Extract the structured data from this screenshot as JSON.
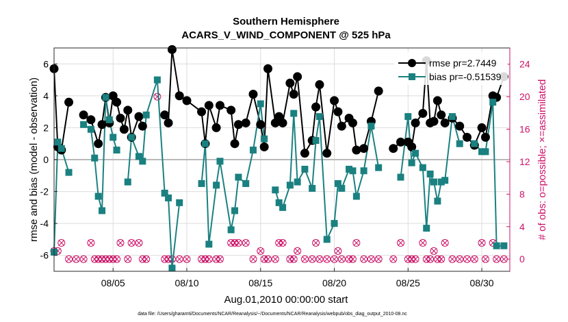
{
  "chart_data": {
    "type": "line",
    "title": "Southern Hemisphere",
    "subtitle": "ACARS_V_WIND_COMPONENT @ 525 hPa",
    "xlabel": "Aug.01,2010 00:00:00 start",
    "ylabel": "rmse and bias (model - observation)",
    "y2label": "# of obs: o=possible; ×=assimilated",
    "footnote": "data file: /Users/gharamti/Documents/NCAR/Reanalysis/~/Documents/NCAR/Reanalysis/webpub/obs_diag_output_2010-08.nc",
    "xlim": [
      1.0,
      31.9
    ],
    "ylim": [
      -7,
      7
    ],
    "y2lim": [
      -1.5,
      26
    ],
    "grid": true,
    "legend_position": "top-right",
    "x_ticks": [
      5,
      10,
      15,
      20,
      25,
      30
    ],
    "x_tick_labels": [
      "08/05",
      "08/10",
      "08/15",
      "08/20",
      "08/25",
      "08/30"
    ],
    "y_ticks": [
      -6,
      -4,
      -2,
      0,
      2,
      4,
      6
    ],
    "y_tick_labels": [
      "-6",
      "-4",
      "-2",
      "0",
      "2",
      "4",
      "6"
    ],
    "y2_ticks": [
      0,
      4,
      8,
      12,
      16,
      20,
      24
    ],
    "y2_tick_labels": [
      "0",
      "4",
      "8",
      "12",
      "16",
      "20",
      "24"
    ],
    "colors": {
      "rmse": "#000000",
      "bias": "#1a8080",
      "obs": "#cc1166",
      "zero_line": "#b8b8b8"
    },
    "series": [
      {
        "name": "rmse pr=2.7449",
        "marker": "circle",
        "x": [
          1.0,
          1.25,
          1.5,
          2.0,
          2.5,
          3.0,
          3.5,
          4.0,
          4.25,
          4.5,
          4.75,
          5.0,
          5.25,
          5.5,
          5.75,
          6.0,
          6.25,
          6.75,
          7.0,
          8.0,
          8.5,
          8.75,
          9.0,
          9.5,
          10.0,
          11.0,
          11.25,
          11.5,
          12.0,
          12.25,
          13.0,
          13.25,
          13.5,
          14.0,
          14.5,
          15.0,
          15.25,
          15.5,
          16.0,
          16.25,
          16.5,
          17.0,
          17.25,
          17.5,
          18.0,
          18.5,
          18.75,
          19.0,
          19.5,
          20.0,
          20.25,
          20.5,
          21.0,
          21.25,
          21.5,
          22.0,
          22.5,
          23.0,
          23.5,
          24.0,
          24.5,
          25.0,
          25.25,
          25.5,
          26.0,
          26.25,
          26.5,
          26.75,
          27.0,
          27.25,
          27.5,
          28.0,
          28.5,
          29.0,
          29.5,
          30.0,
          30.25,
          30.75,
          31.0,
          31.5
        ],
        "values": [
          5.7,
          0.8,
          0.6,
          3.6,
          null,
          2.8,
          2.5,
          1.0,
          2.2,
          3.9,
          2.3,
          4.0,
          3.6,
          2.6,
          1.9,
          3.1,
          1.4,
          2.7,
          2.1,
          null,
          2.8,
          2.3,
          6.9,
          4.0,
          3.7,
          3.0,
          1.0,
          3.4,
          2.0,
          3.4,
          3.1,
          1.0,
          2.2,
          2.3,
          4.1,
          2.2,
          0.8,
          5.7,
          2.3,
          2.7,
          2.3,
          4.8,
          4.1,
          5.2,
          0.4,
          1.2,
          3.3,
          4.7,
          0.4,
          3.7,
          3.0,
          2.1,
          2.6,
          2.3,
          0.6,
          0.7,
          2.4,
          4.3,
          null,
          0.7,
          1.1,
          1.1,
          0.8,
          2.3,
          2.9,
          6.2,
          2.3,
          2.4,
          3.7,
          2.8,
          2.3,
          2.6,
          2.1,
          1.4,
          0.9,
          2.0,
          1.4,
          4.0,
          3.9,
          5.2
        ]
      },
      {
        "name": "bias pr=-0.51539",
        "marker": "square",
        "x": [
          1.0,
          1.25,
          1.5,
          2.0,
          2.5,
          3.0,
          3.5,
          3.75,
          4.0,
          4.25,
          4.5,
          4.75,
          5.0,
          5.25,
          5.5,
          6.0,
          6.25,
          6.75,
          7.0,
          7.25,
          8.0,
          8.5,
          8.75,
          9.0,
          9.5,
          10.0,
          11.0,
          11.25,
          11.5,
          12.0,
          12.25,
          13.0,
          13.25,
          13.5,
          14.0,
          14.5,
          15.0,
          15.25,
          15.5,
          16.0,
          16.25,
          16.5,
          17.0,
          17.25,
          17.5,
          18.0,
          18.5,
          18.75,
          19.0,
          19.5,
          20.0,
          20.25,
          20.5,
          21.0,
          21.25,
          21.5,
          22.0,
          22.5,
          23.0,
          24.0,
          24.5,
          25.0,
          25.25,
          25.5,
          26.0,
          26.25,
          26.5,
          26.75,
          27.0,
          27.25,
          27.5,
          28.0,
          28.5,
          29.0,
          29.5,
          30.0,
          30.25,
          30.75,
          31.0,
          31.5
        ],
        "values": [
          -5.8,
          1.1,
          0.7,
          -0.8,
          null,
          2.2,
          1.9,
          0.1,
          -2.3,
          -3.2,
          3.9,
          2.5,
          1.4,
          0.6,
          null,
          -1.4,
          1.4,
          0.2,
          -0.1,
          2.8,
          5.0,
          -2.1,
          -2.4,
          -6.8,
          -2.7,
          null,
          -1.5,
          1.0,
          -5.3,
          -1.6,
          -0.1,
          -4.4,
          -3.2,
          -1.1,
          -1.5,
          0.6,
          3.5,
          1.3,
          null,
          -1.9,
          -2.7,
          -3.0,
          -1.6,
          2.9,
          -1.4,
          -0.6,
          -1.8,
          1.2,
          2.7,
          -5.0,
          -4.0,
          -1.5,
          -1.8,
          -0.6,
          -0.7,
          -2.3,
          -0.7,
          2.1,
          -0.5,
          null,
          -1.1,
          2.7,
          -0.2,
          0.4,
          -0.5,
          -4.3,
          -0.9,
          -1.4,
          -2.6,
          -1.4,
          -1.3,
          2.7,
          1.0,
          null,
          1.0,
          0.5,
          0.5,
          3.6,
          -5.4,
          -5.4
        ]
      },
      {
        "name": "",
        "marker": "circle-cross",
        "x": [
          1.0,
          1.25,
          1.5,
          2.0,
          2.5,
          3.0,
          3.5,
          3.75,
          4.0,
          4.25,
          4.5,
          4.75,
          5.0,
          5.25,
          5.5,
          6.0,
          6.25,
          6.75,
          7.0,
          7.25,
          8.0,
          8.5,
          8.75,
          9.0,
          9.5,
          10.0,
          11.0,
          11.25,
          11.5,
          12.0,
          12.25,
          13.0,
          13.25,
          13.5,
          14.0,
          14.5,
          15.0,
          15.25,
          15.5,
          16.0,
          16.25,
          16.5,
          17.0,
          17.25,
          17.5,
          18.0,
          18.5,
          18.75,
          19.0,
          19.5,
          20.0,
          20.25,
          20.5,
          21.0,
          21.25,
          21.5,
          22.0,
          22.5,
          23.0,
          24.0,
          24.5,
          25.0,
          25.25,
          25.5,
          26.0,
          26.25,
          26.5,
          26.75,
          27.0,
          27.25,
          27.5,
          28.0,
          28.5,
          29.0,
          29.5,
          30.0,
          30.25,
          30.75,
          31.0,
          31.5
        ],
        "values": [
          1,
          1,
          2,
          0,
          0,
          0,
          2,
          0,
          0,
          0,
          0,
          0,
          0,
          0,
          2,
          0,
          2,
          2,
          0,
          0,
          20,
          0,
          0,
          0,
          0,
          0,
          0,
          0,
          0,
          0,
          0,
          2,
          2,
          2,
          2,
          0,
          1,
          0,
          0,
          0,
          2,
          2,
          0,
          0,
          1,
          0,
          0,
          2,
          0,
          0,
          0,
          1,
          0,
          0,
          0,
          2,
          0,
          0,
          0,
          0,
          2,
          0,
          0,
          0,
          2,
          0,
          0,
          1,
          0,
          0,
          2,
          0,
          0,
          0,
          0,
          2,
          0,
          2,
          0,
          0
        ]
      }
    ],
    "legend": [
      {
        "label": "rmse pr=2.7449",
        "marker": "circle"
      },
      {
        "label": "bias pr=-0.51539",
        "marker": "square"
      }
    ]
  }
}
